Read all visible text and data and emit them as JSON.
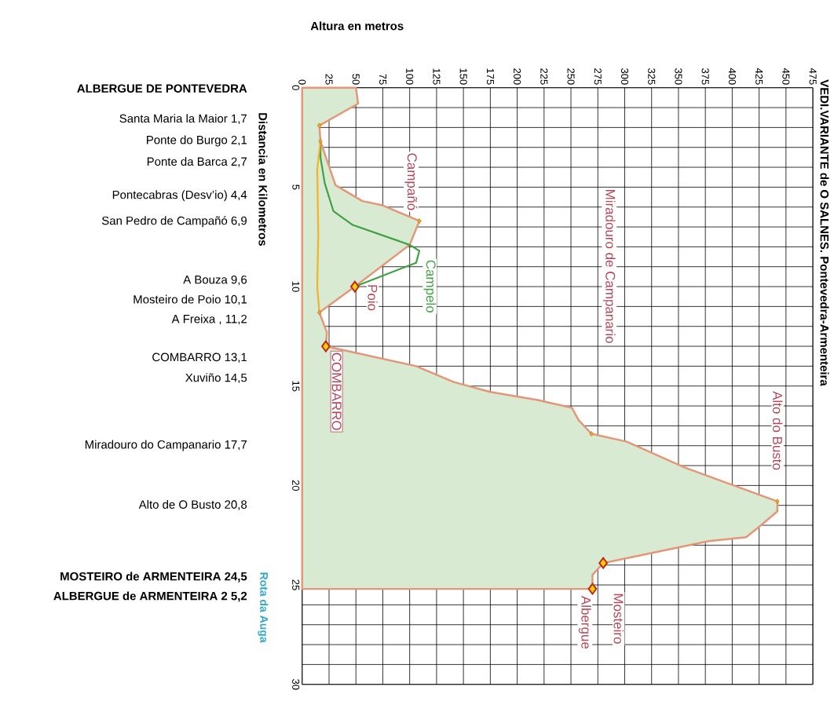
{
  "chart_data": {
    "type": "area",
    "orientation": "horizontal",
    "title": "VEDI.VARIANTE de O SALNES. Pontevedra-Armenteira",
    "xlabel": "Altura en metros",
    "ylabel": "Distancia en Kilometros",
    "xlim": [
      0,
      475
    ],
    "ylim": [
      30,
      0
    ],
    "xticks": [
      0,
      25,
      50,
      75,
      100,
      125,
      150,
      175,
      200,
      225,
      250,
      275,
      300,
      325,
      350,
      375,
      400,
      425,
      450,
      475
    ],
    "yticks": [
      0,
      {
        "value": 1,
        "label": null
      },
      {
        "value": 2,
        "label": null
      },
      {
        "value": 3,
        "label": null
      },
      {
        "value": 4,
        "label": null
      },
      5,
      {
        "value": 6,
        "label": null
      },
      {
        "value": 7,
        "label": null
      },
      {
        "value": 8,
        "label": null
      },
      {
        "value": 9,
        "label": null
      },
      10,
      {
        "value": 11,
        "label": null
      },
      {
        "value": 12,
        "label": null
      },
      {
        "value": 13,
        "label": null
      },
      {
        "value": 14,
        "label": null
      },
      15,
      {
        "value": 16,
        "label": null
      },
      {
        "value": 17,
        "label": null
      },
      {
        "value": 18,
        "label": null
      },
      {
        "value": 19,
        "label": null
      },
      20,
      {
        "value": 21,
        "label": null
      },
      {
        "value": 22,
        "label": null
      },
      {
        "value": 23,
        "label": null
      },
      {
        "value": 24,
        "label": null
      },
      25,
      {
        "value": 26,
        "label": null
      },
      {
        "value": 27,
        "label": null
      },
      {
        "value": 28,
        "label": null
      },
      {
        "value": 29,
        "label": null
      },
      30
    ],
    "grid": true,
    "series": [
      {
        "color": "#d9ead3",
        "x": [
          0,
          0.8,
          1.9,
          2.7,
          4.9,
          5.7,
          5.9,
          6.7,
          7.9,
          10.0,
          11.3,
          12.3,
          13.0,
          14.0,
          14.8,
          15.3,
          15.7,
          16.1,
          16.7,
          17.4,
          17.8,
          19.1,
          20.8,
          21.3,
          21.9,
          22.6,
          22.8,
          23.9,
          24.5,
          25.2
        ],
        "values": [
          50,
          52,
          16,
          17,
          31,
          56,
          74,
          109,
          100,
          49,
          16,
          23,
          22,
          106,
          141,
          175,
          219,
          251,
          257,
          269,
          302,
          356,
          442,
          442,
          429,
          413,
          378,
          280,
          270,
          270
        ]
      },
      {
        "type": "line",
        "name": "Campelo",
        "color": "#3fa142",
        "x": [
          2.7,
          3.5,
          4.8,
          6.2,
          6.9,
          7.9,
          8.2,
          8.8,
          10.0
        ],
        "values": [
          17,
          17,
          21,
          29,
          47,
          100,
          109,
          106,
          49
        ]
      },
      {
        "type": "line",
        "color": "#f0b429",
        "x": [
          2.7,
          4.1,
          7.4,
          10.0,
          11.3
        ],
        "values": [
          17,
          14,
          15,
          14,
          16
        ]
      },
      {
        "type": "scatter",
        "marker": "diamond",
        "color": "#f5a623",
        "x": [
          1.9,
          2.7,
          6.7,
          11.3,
          17.4,
          20.8
        ],
        "values": [
          16,
          17,
          109,
          16,
          269,
          442
        ]
      },
      {
        "type": "scatter",
        "marker": "diamond",
        "color": "#ffd200",
        "x": [
          10.0,
          13.0,
          23.9,
          25.2
        ],
        "values": [
          49,
          22,
          280,
          270
        ]
      }
    ],
    "annotations": [
      "Campañó",
      "Poio",
      "COMBARRO",
      "Miradouro de Campanario",
      "Alto do Busto",
      "Mosteiro",
      "Albergue",
      "**ALBERGUE DE PONTEVEDRA**",
      "Santa Maria la Maior  1,7",
      "Ponte do Burgo  2,1",
      "Ponte da Barca  2,7",
      "Pontecabras (Desv’io)  4,4",
      "San Pedro de Campañó  6,9",
      "A Bouza  9,6",
      "Mosteiro de Poio  10,1",
      "A Freixa , 11,2",
      "COMBARRO  13,1",
      "Xuviño  14,5",
      "Miradouro do Campanario  17,7",
      "Alto de O Busto  20,8",
      "**MOSTEIRO de ARMENTEIRA  24,5**",
      "**ALBERGUE de ARMENTEIRA  2 5,2**",
      "Rota da Auga"
    ]
  }
}
